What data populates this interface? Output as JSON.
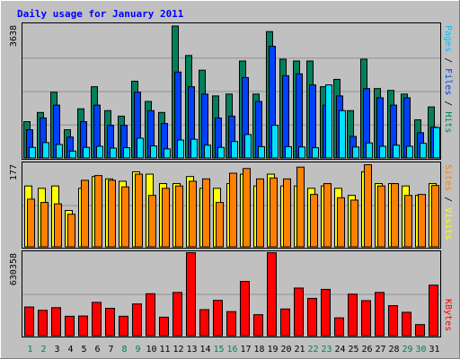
{
  "chart_data": [
    {
      "type": "bar",
      "title": "Daily usage for January 2011",
      "ymax_label": "3638",
      "ylim": [
        0,
        3638
      ],
      "categories": [
        "1",
        "2",
        "3",
        "4",
        "5",
        "6",
        "7",
        "8",
        "9",
        "10",
        "11",
        "12",
        "13",
        "14",
        "15",
        "16",
        "17",
        "18",
        "19",
        "20",
        "21",
        "22",
        "23",
        "24",
        "25",
        "26",
        "27",
        "28",
        "29",
        "30",
        "31"
      ],
      "weekend_days": [
        "1",
        "2",
        "8",
        "9",
        "15",
        "16",
        "22",
        "23",
        "29",
        "30"
      ],
      "series": [
        {
          "name": "Hits",
          "color": "#00805c",
          "values": [
            1000,
            1250,
            1800,
            780,
            1350,
            1950,
            1300,
            1150,
            2100,
            1550,
            1250,
            3600,
            2800,
            2400,
            1700,
            1750,
            2650,
            1750,
            3450,
            2700,
            2650,
            2650,
            1950,
            2150,
            1300,
            2700,
            1900,
            1850,
            1750,
            1050,
            1400
          ]
        },
        {
          "name": "Files",
          "color": "#0040ff",
          "values": [
            780,
            1100,
            1450,
            580,
            1000,
            1450,
            900,
            900,
            1800,
            1300,
            950,
            2350,
            1950,
            1750,
            1100,
            1150,
            2200,
            1550,
            3050,
            2250,
            2300,
            2000,
            1450,
            1700,
            600,
            1900,
            1650,
            1450,
            1650,
            700,
            850
          ]
        },
        {
          "name": "Pages",
          "color": "#00e0ff",
          "values": [
            300,
            430,
            380,
            200,
            300,
            330,
            280,
            290,
            550,
            340,
            260,
            500,
            520,
            360,
            300,
            460,
            650,
            320,
            900,
            320,
            310,
            290,
            2000,
            1300,
            310,
            420,
            330,
            360,
            330,
            410,
            840
          ]
        }
      ]
    },
    {
      "type": "bar",
      "ymax_label": "177",
      "ylim": [
        0,
        177
      ],
      "categories": [
        "1",
        "2",
        "3",
        "4",
        "5",
        "6",
        "7",
        "8",
        "9",
        "10",
        "11",
        "12",
        "13",
        "14",
        "15",
        "16",
        "17",
        "18",
        "19",
        "20",
        "21",
        "22",
        "23",
        "24",
        "25",
        "26",
        "27",
        "28",
        "29",
        "30",
        "31"
      ],
      "series": [
        {
          "name": "Visits",
          "color": "#ffff00",
          "values": [
            130,
            125,
            130,
            78,
            125,
            150,
            145,
            140,
            160,
            155,
            135,
            135,
            150,
            125,
            125,
            135,
            155,
            130,
            155,
            130,
            130,
            125,
            130,
            125,
            110,
            160,
            135,
            135,
            130,
            110,
            135
          ]
        },
        {
          "name": "Sites",
          "color": "#ff8000",
          "values": [
            102,
            95,
            92,
            70,
            142,
            152,
            142,
            128,
            155,
            110,
            125,
            130,
            140,
            145,
            95,
            157,
            167,
            145,
            147,
            145,
            170,
            112,
            135,
            105,
            100,
            175,
            130,
            135,
            110,
            112,
            131
          ]
        }
      ]
    },
    {
      "type": "bar",
      "ymax_label": "630358",
      "ylim": [
        0,
        630358
      ],
      "categories": [
        "1",
        "2",
        "3",
        "4",
        "5",
        "6",
        "7",
        "8",
        "9",
        "10",
        "11",
        "12",
        "13",
        "14",
        "15",
        "16",
        "17",
        "18",
        "19",
        "20",
        "21",
        "22",
        "23",
        "24",
        "25",
        "26",
        "27",
        "28",
        "29",
        "30",
        "31"
      ],
      "series": [
        {
          "name": "KBytes",
          "color": "#ff0000",
          "values": [
            220000,
            195000,
            215000,
            150000,
            152000,
            255000,
            210000,
            150000,
            243000,
            320000,
            143000,
            330000,
            630000,
            200000,
            270000,
            185000,
            413000,
            162000,
            630000,
            205000,
            363000,
            285000,
            353000,
            138000,
            317000,
            268000,
            330000,
            230000,
            180000,
            87000,
            385000
          ]
        }
      ]
    }
  ],
  "labels": {
    "panel1_legend": [
      {
        "text": "Pages",
        "color": "#00c0ff"
      },
      {
        "text": " / ",
        "color": "#000000"
      },
      {
        "text": "Files",
        "color": "#0040ff"
      },
      {
        "text": " / ",
        "color": "#000000"
      },
      {
        "text": "Hits",
        "color": "#00805c"
      }
    ],
    "panel2_legend": [
      {
        "text": "Sites",
        "color": "#ff8000"
      },
      {
        "text": " / ",
        "color": "#000000"
      },
      {
        "text": "Visits",
        "color": "#ffff00"
      }
    ],
    "panel3_legend": [
      {
        "text": "KBytes",
        "color": "#ff0000"
      }
    ]
  },
  "colors": {
    "background": "#c0c0c0",
    "plot": "#c0c0c0",
    "title": "#0000ff",
    "weekday_label": "#000000",
    "weekend_label": "#00805c",
    "grid": "#909090"
  }
}
